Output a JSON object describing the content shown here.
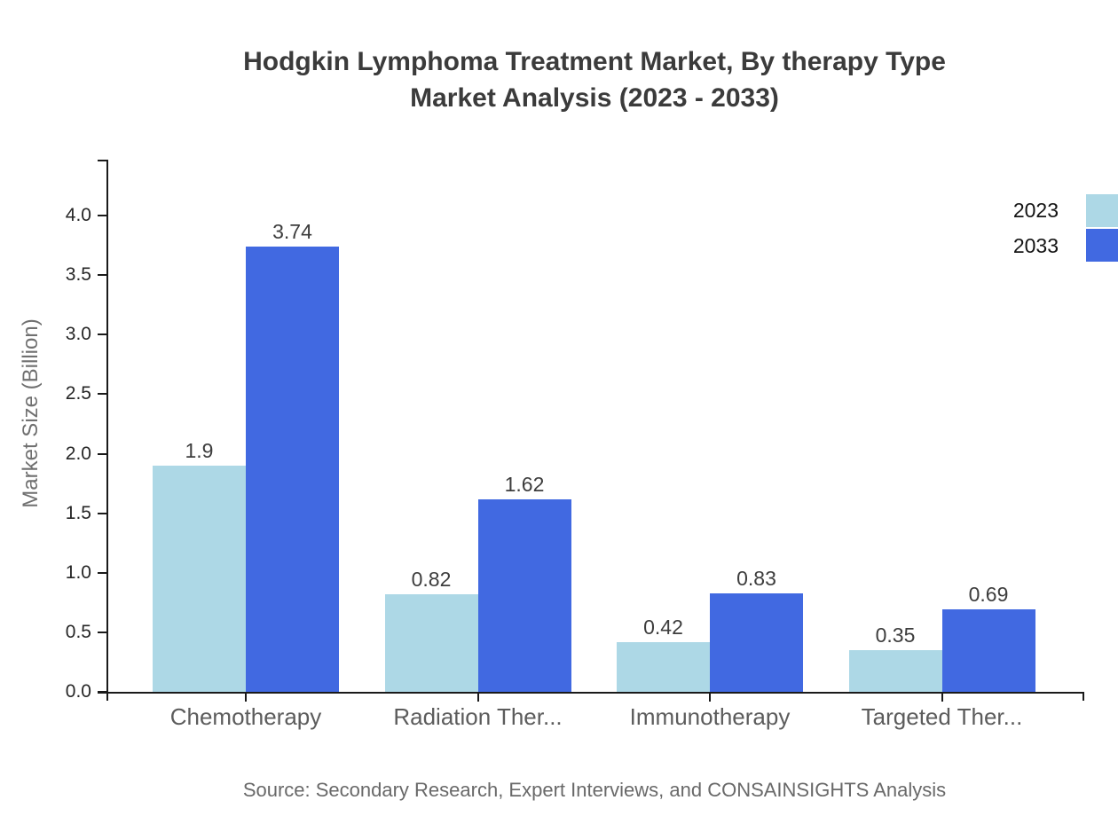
{
  "chart_data": {
    "type": "bar",
    "title_lines": [
      "Hodgkin Lymphoma Treatment Market, By therapy Type",
      "Market Analysis (2023 - 2033)"
    ],
    "ylabel": "Market Size (Billion)",
    "xlabel": "",
    "categories": [
      "Chemotherapy",
      "Radiation Ther...",
      "Immunotherapy",
      "Targeted Ther..."
    ],
    "series": [
      {
        "name": "2023",
        "color": "#ADD8E6",
        "values": [
          1.9,
          0.82,
          0.42,
          0.35
        ],
        "labels": [
          "1.9",
          "0.82",
          "0.42",
          "0.35"
        ]
      },
      {
        "name": "2033",
        "color": "#4169E1",
        "values": [
          3.74,
          1.62,
          0.83,
          0.69
        ],
        "labels": [
          "3.74",
          "1.62",
          "0.83",
          "0.69"
        ]
      }
    ],
    "yticks": [
      0,
      0.5,
      1,
      1.5,
      2,
      2.5,
      3,
      3.5,
      4
    ],
    "ytick_labels": [
      "0.0",
      "0.5",
      "1.0",
      "1.5",
      "2.0",
      "2.5",
      "3.0",
      "3.5",
      "4.0"
    ],
    "ylim": [
      0,
      4.47
    ],
    "grid": false,
    "legend_position": "top-right",
    "axis_color": "#1a1a1a",
    "source": "Source: Secondary Research, Expert Interviews, and CONSAINSIGHTS Analysis"
  }
}
